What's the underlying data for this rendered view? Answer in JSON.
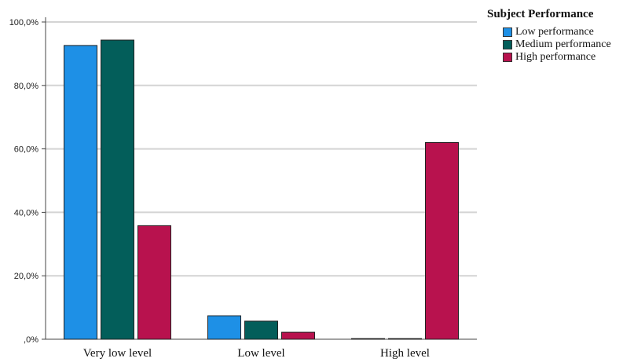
{
  "chart_data": {
    "type": "bar",
    "categories": [
      "Very low level",
      "Low level",
      "High level"
    ],
    "series": [
      {
        "name": "Low performance",
        "values": [
          92.6,
          7.4,
          0.0
        ],
        "color": "#1E90E6"
      },
      {
        "name": "Medium performance",
        "values": [
          94.3,
          5.7,
          0.0
        ],
        "color": "#035E5A"
      },
      {
        "name": "High performance",
        "values": [
          35.8,
          2.2,
          62.0
        ],
        "color": "#B8124E"
      }
    ],
    "yticks": [
      "100,0%",
      "80,0%",
      "60,0%",
      "40,0%",
      "20,0%",
      ",0%"
    ],
    "ylim": [
      0,
      100
    ],
    "grid": true,
    "legend_title": "Subject Performance",
    "legend_position": "top-right"
  }
}
